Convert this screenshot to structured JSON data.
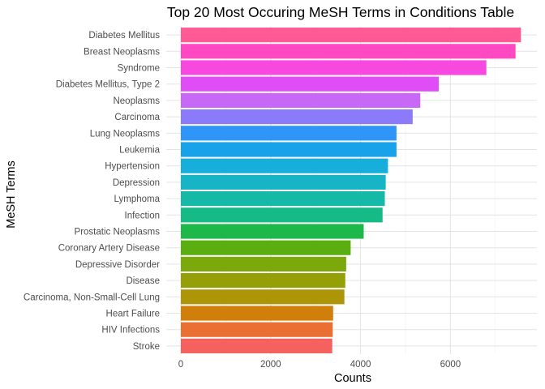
{
  "chart_data": {
    "type": "bar",
    "orientation": "horizontal",
    "title": "Top 20 Most Occuring MeSH Terms in Conditions Table",
    "xlabel": "Counts",
    "ylabel": "MeSH Terms",
    "xlim": [
      0,
      7600
    ],
    "x_ticks": [
      "0",
      "2000",
      "4000",
      "6000"
    ],
    "grid": true,
    "legend": "none",
    "categories": [
      "Diabetes Mellitus",
      "Breast Neoplasms",
      "Syndrome",
      "Diabetes Mellitus, Type 2",
      "Neoplasms",
      "Carcinoma",
      "Lung Neoplasms",
      "Leukemia",
      "Hypertension",
      "Depression",
      "Lymphoma",
      "Infection",
      "Prostatic Neoplasms",
      "Coronary Artery Disease",
      "Depressive Disorder",
      "Disease",
      "Carcinoma, Non-Small-Cell Lung",
      "Heart Failure",
      "HIV Infections",
      "Stroke"
    ],
    "values": [
      7570,
      7450,
      6800,
      5740,
      5330,
      5160,
      4800,
      4800,
      4610,
      4560,
      4540,
      4490,
      4070,
      3780,
      3680,
      3660,
      3640,
      3390,
      3380,
      3370
    ],
    "colors": [
      "#FF5A93",
      "#FF49C3",
      "#F748E0",
      "#E04CF5",
      "#C868F7",
      "#8B7AF9",
      "#2F95F8",
      "#17A2EA",
      "#17AEDC",
      "#16B4C4",
      "#16B8A8",
      "#16BA84",
      "#1DB74A",
      "#5BAE10",
      "#7BA80A",
      "#959F07",
      "#AC9507",
      "#D17F0B",
      "#EA6F33",
      "#F5615E"
    ]
  }
}
